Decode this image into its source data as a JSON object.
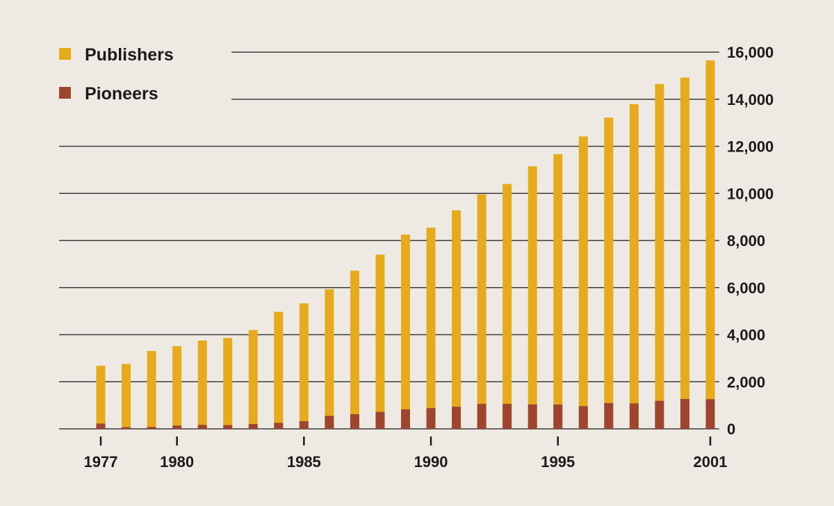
{
  "chart_data": {
    "type": "bar",
    "stacked": false,
    "overlaid": true,
    "title": "",
    "xlabel": "",
    "ylabel": "",
    "categories": [
      1977,
      1978,
      1979,
      1980,
      1981,
      1982,
      1983,
      1984,
      1985,
      1986,
      1987,
      1988,
      1989,
      1990,
      1991,
      1992,
      1993,
      1994,
      1995,
      1996,
      1997,
      1998,
      1999,
      2000,
      2001
    ],
    "x_tick_labels": [
      "1977",
      "1980",
      "1985",
      "1990",
      "1995",
      "2001"
    ],
    "y_tick_labels": [
      "0",
      "2,000",
      "4,000",
      "6,000",
      "8,000",
      "10,000",
      "12,000",
      "14,000",
      "16,000"
    ],
    "ylim": [
      0,
      16000
    ],
    "y_axis_position": "right",
    "grid": true,
    "legend_position": "top-left",
    "series": [
      {
        "name": "Publishers",
        "color": "#e6aa1e",
        "values": [
          2680,
          2760,
          3310,
          3510,
          3750,
          3860,
          4200,
          4970,
          5330,
          5930,
          6720,
          7400,
          8250,
          8545,
          9280,
          9960,
          10400,
          11150,
          11670,
          12420,
          13220,
          13790,
          14650,
          14920,
          15650
        ]
      },
      {
        "name": "Pioneers",
        "color": "#9e4530",
        "values": [
          225,
          70,
          80,
          140,
          170,
          160,
          205,
          255,
          325,
          550,
          625,
          720,
          830,
          880,
          940,
          1060,
          1060,
          1035,
          1035,
          965,
          1095,
          1080,
          1190,
          1270,
          1260
        ]
      }
    ]
  }
}
